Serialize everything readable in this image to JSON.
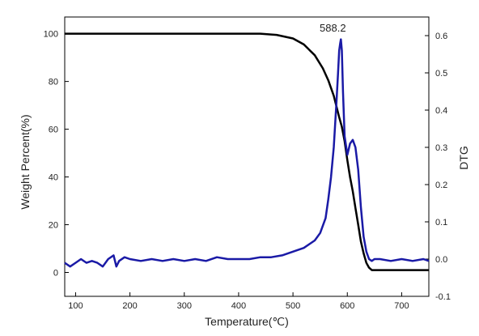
{
  "chart_data": {
    "type": "line",
    "xlabel": "Temperature(℃)",
    "ylabel_left": "Weight Percent(%)",
    "ylabel_right": "DTG",
    "xlim": [
      80,
      750
    ],
    "ylim_left": [
      -10,
      107
    ],
    "ylim_right": [
      -0.1,
      0.65
    ],
    "x_ticks": [
      100,
      200,
      300,
      400,
      500,
      600,
      700
    ],
    "y_left_ticks": [
      0,
      20,
      40,
      60,
      80,
      100
    ],
    "y_right_ticks": [
      -0.1,
      0.0,
      0.1,
      0.2,
      0.3,
      0.4,
      0.5,
      0.6
    ],
    "y_right_tick_labels": [
      "-0.1",
      "0.0",
      "0.1",
      "0.2",
      "0.3",
      "0.4",
      "0.5",
      "0.6"
    ],
    "grid": false,
    "annotations": [
      {
        "text": "588.2",
        "x": 588.2,
        "y_right": 0.6
      }
    ],
    "series": [
      {
        "axis": "left",
        "color": "#000000",
        "x": [
          80,
          300,
          440,
          470,
          500,
          520,
          540,
          555,
          565,
          575,
          585,
          590,
          595,
          600,
          605,
          610,
          615,
          620,
          625,
          630,
          635,
          640,
          645,
          650,
          700,
          750
        ],
        "y": [
          100,
          100,
          100,
          99.5,
          98,
          95.5,
          91,
          85.5,
          80.5,
          74,
          65,
          61,
          55,
          47,
          40,
          34,
          27,
          20,
          13,
          8,
          4,
          2,
          1,
          1,
          1,
          1
        ]
      },
      {
        "axis": "right",
        "color": "#1a1aa6",
        "x": [
          80,
          90,
          100,
          110,
          120,
          130,
          140,
          150,
          160,
          170,
          175,
          180,
          190,
          200,
          220,
          240,
          260,
          280,
          300,
          320,
          340,
          360,
          380,
          400,
          420,
          440,
          460,
          480,
          500,
          520,
          530,
          540,
          550,
          560,
          565,
          570,
          575,
          580,
          583,
          585,
          587,
          588.2,
          590,
          592,
          595,
          600,
          605,
          610,
          615,
          620,
          625,
          630,
          635,
          640,
          645,
          650,
          660,
          680,
          700,
          720,
          740,
          750
        ],
        "y": [
          -0.01,
          -0.02,
          -0.01,
          0.0,
          -0.01,
          -0.005,
          -0.01,
          -0.02,
          0.0,
          0.01,
          -0.02,
          -0.005,
          0.005,
          0.0,
          -0.005,
          0.0,
          -0.005,
          0.0,
          -0.005,
          0.0,
          -0.005,
          0.005,
          0.0,
          0.0,
          0.0,
          0.005,
          0.005,
          0.01,
          0.02,
          0.03,
          0.04,
          0.05,
          0.07,
          0.11,
          0.16,
          0.22,
          0.3,
          0.42,
          0.5,
          0.56,
          0.58,
          0.59,
          0.56,
          0.45,
          0.33,
          0.28,
          0.31,
          0.32,
          0.3,
          0.24,
          0.14,
          0.06,
          0.02,
          0.0,
          -0.005,
          0.0,
          0.0,
          -0.005,
          0.0,
          -0.005,
          0.0,
          -0.005
        ]
      }
    ]
  }
}
